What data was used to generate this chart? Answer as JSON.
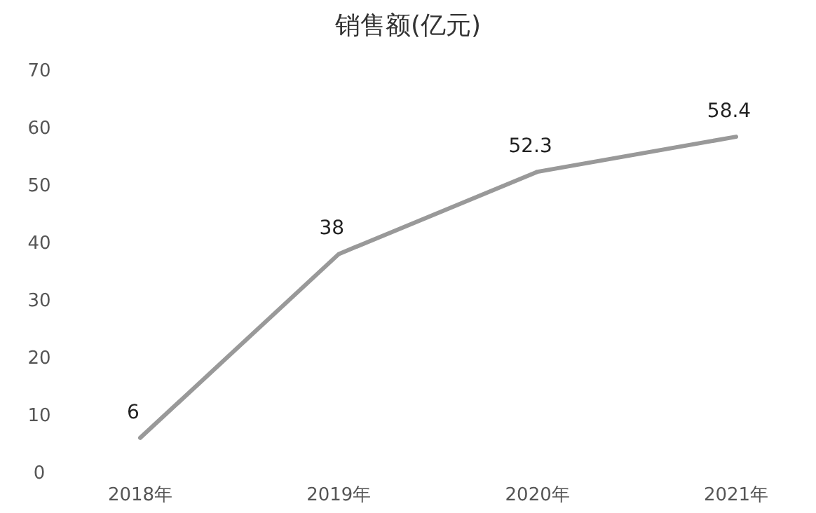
{
  "chart_data": {
    "type": "line",
    "title": "销售额(亿元)",
    "categories": [
      "2018年",
      "2019年",
      "2020年",
      "2021年"
    ],
    "series": [
      {
        "color": "#999999",
        "values": [
          6,
          38,
          52.3,
          58.4
        ]
      }
    ],
    "ylim": [
      0,
      70
    ],
    "yticks": [
      0,
      10,
      20,
      30,
      40,
      50,
      60,
      70
    ],
    "grid": false,
    "data_labels": true,
    "marker": "none",
    "line_style": "solid"
  }
}
